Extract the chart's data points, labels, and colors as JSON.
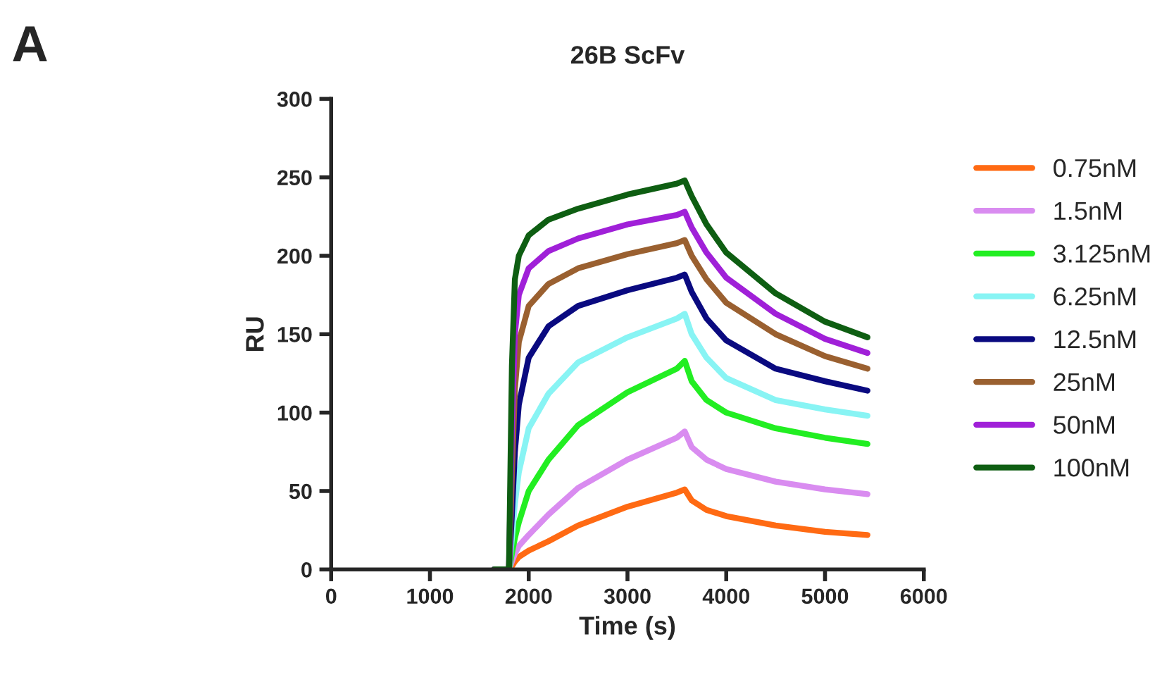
{
  "chart_data": {
    "type": "line",
    "title": "26B ScFv",
    "xlabel": "Time (s)",
    "ylabel": "RU",
    "annotations": [
      "A"
    ],
    "x": [
      1650,
      1800,
      1830,
      1860,
      1900,
      2000,
      2200,
      2500,
      3000,
      3500,
      3580,
      3650,
      3800,
      4000,
      4500,
      5000,
      5430
    ],
    "series": [
      {
        "name": "0.75nM",
        "color": "#ff6a13",
        "values": [
          0,
          0,
          2,
          5,
          8,
          12,
          18,
          28,
          40,
          49,
          51,
          44,
          38,
          34,
          28,
          24,
          22
        ]
      },
      {
        "name": "1.5nM",
        "color": "#d98cf0",
        "values": [
          0,
          0,
          5,
          10,
          15,
          22,
          35,
          52,
          70,
          84,
          88,
          78,
          70,
          64,
          56,
          51,
          48
        ]
      },
      {
        "name": "3.125nM",
        "color": "#22ee22",
        "values": [
          0,
          0,
          10,
          20,
          30,
          50,
          70,
          92,
          113,
          128,
          133,
          120,
          108,
          100,
          90,
          84,
          80
        ]
      },
      {
        "name": "6.25nM",
        "color": "#88f4f4",
        "values": [
          0,
          0,
          20,
          42,
          62,
          90,
          112,
          132,
          148,
          160,
          163,
          150,
          135,
          122,
          108,
          102,
          98
        ]
      },
      {
        "name": "12.5nM",
        "color": "#0a0a80",
        "values": [
          0,
          0,
          35,
          75,
          105,
          135,
          155,
          168,
          178,
          186,
          188,
          177,
          160,
          146,
          128,
          120,
          114
        ]
      },
      {
        "name": "25nM",
        "color": "#9a6030",
        "values": [
          0,
          0,
          60,
          115,
          145,
          168,
          182,
          192,
          201,
          208,
          210,
          200,
          185,
          170,
          150,
          136,
          128
        ]
      },
      {
        "name": "50nM",
        "color": "#a020d8",
        "values": [
          0,
          0,
          90,
          150,
          175,
          192,
          203,
          211,
          220,
          226,
          228,
          218,
          202,
          186,
          163,
          147,
          138
        ]
      },
      {
        "name": "100nM",
        "color": "#0e5e12",
        "values": [
          0,
          0,
          130,
          185,
          200,
          213,
          223,
          230,
          239,
          246,
          248,
          238,
          220,
          202,
          176,
          158,
          148
        ]
      }
    ],
    "xlim": [
      0,
      6000
    ],
    "xticks": [
      0,
      1000,
      2000,
      3000,
      4000,
      5000,
      6000
    ],
    "ylim": [
      0,
      300
    ],
    "yticks": [
      0,
      50,
      100,
      150,
      200,
      250,
      300
    ],
    "grid": false,
    "legend": "right",
    "line_style": "solid"
  }
}
